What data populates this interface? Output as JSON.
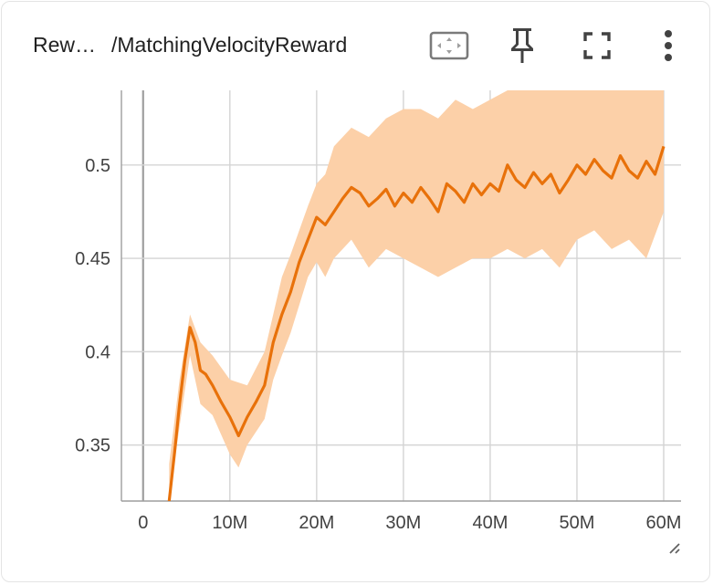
{
  "header": {
    "title_prefix": "Rew…",
    "title_main": "/MatchingVelocityReward",
    "icons": [
      "fit-domain-icon",
      "pin-icon",
      "fullscreen-icon",
      "more-vert-icon"
    ]
  },
  "colors": {
    "line": "#e8710a",
    "band": "#fcd0a8",
    "grid": "#d4d4d4",
    "axis": "#9e9e9e"
  },
  "chart_data": {
    "type": "line",
    "title": "",
    "xlabel": "",
    "ylabel": "",
    "xlim": [
      -2500000,
      62000000
    ],
    "ylim": [
      0.32,
      0.54
    ],
    "x_ticks": [
      0,
      10000000,
      20000000,
      30000000,
      40000000,
      50000000,
      60000000
    ],
    "x_tick_labels": [
      "0",
      "10M",
      "20M",
      "30M",
      "40M",
      "50M",
      "60M"
    ],
    "y_ticks": [
      0.35,
      0.4,
      0.45,
      0.5
    ],
    "y_tick_labels": [
      "0.35",
      "0.4",
      "0.45",
      "0.5"
    ],
    "grid": true,
    "series": [
      {
        "smoothed": [
          [
            3000000,
            0.32
          ],
          [
            3600000,
            0.345
          ],
          [
            4200000,
            0.372
          ],
          [
            4800000,
            0.395
          ],
          [
            5400000,
            0.413
          ],
          [
            6000000,
            0.405
          ],
          [
            6600000,
            0.39
          ],
          [
            7200000,
            0.388
          ],
          [
            8000000,
            0.382
          ],
          [
            9000000,
            0.373
          ],
          [
            10000000,
            0.365
          ],
          [
            11000000,
            0.355
          ],
          [
            12000000,
            0.365
          ],
          [
            13000000,
            0.373
          ],
          [
            14000000,
            0.382
          ],
          [
            15000000,
            0.405
          ],
          [
            16000000,
            0.42
          ],
          [
            17000000,
            0.432
          ],
          [
            18000000,
            0.448
          ],
          [
            19000000,
            0.46
          ],
          [
            20000000,
            0.472
          ],
          [
            21000000,
            0.468
          ],
          [
            22000000,
            0.475
          ],
          [
            23000000,
            0.482
          ],
          [
            24000000,
            0.488
          ],
          [
            25000000,
            0.485
          ],
          [
            26000000,
            0.478
          ],
          [
            27000000,
            0.482
          ],
          [
            28000000,
            0.487
          ],
          [
            29000000,
            0.478
          ],
          [
            30000000,
            0.485
          ],
          [
            31000000,
            0.48
          ],
          [
            32000000,
            0.488
          ],
          [
            33000000,
            0.482
          ],
          [
            34000000,
            0.475
          ],
          [
            35000000,
            0.49
          ],
          [
            36000000,
            0.486
          ],
          [
            37000000,
            0.48
          ],
          [
            38000000,
            0.49
          ],
          [
            39000000,
            0.484
          ],
          [
            40000000,
            0.49
          ],
          [
            41000000,
            0.486
          ],
          [
            42000000,
            0.5
          ],
          [
            43000000,
            0.492
          ],
          [
            44000000,
            0.488
          ],
          [
            45000000,
            0.496
          ],
          [
            46000000,
            0.49
          ],
          [
            47000000,
            0.495
          ],
          [
            48000000,
            0.485
          ],
          [
            49000000,
            0.492
          ],
          [
            50000000,
            0.5
          ],
          [
            51000000,
            0.495
          ],
          [
            52000000,
            0.503
          ],
          [
            53000000,
            0.497
          ],
          [
            54000000,
            0.493
          ],
          [
            55000000,
            0.505
          ],
          [
            56000000,
            0.497
          ],
          [
            57000000,
            0.493
          ],
          [
            58000000,
            0.502
          ],
          [
            59000000,
            0.495
          ],
          [
            60000000,
            0.51
          ]
        ],
        "band_high": [
          [
            3000000,
            0.34
          ],
          [
            4200000,
            0.385
          ],
          [
            5400000,
            0.42
          ],
          [
            6600000,
            0.405
          ],
          [
            8000000,
            0.398
          ],
          [
            10000000,
            0.385
          ],
          [
            12000000,
            0.382
          ],
          [
            14000000,
            0.4
          ],
          [
            15000000,
            0.42
          ],
          [
            16000000,
            0.44
          ],
          [
            17000000,
            0.452
          ],
          [
            18000000,
            0.465
          ],
          [
            19000000,
            0.478
          ],
          [
            20000000,
            0.49
          ],
          [
            21000000,
            0.495
          ],
          [
            22000000,
            0.51
          ],
          [
            24000000,
            0.52
          ],
          [
            26000000,
            0.515
          ],
          [
            28000000,
            0.525
          ],
          [
            30000000,
            0.53
          ],
          [
            32000000,
            0.53
          ],
          [
            34000000,
            0.525
          ],
          [
            36000000,
            0.535
          ],
          [
            38000000,
            0.53
          ],
          [
            40000000,
            0.535
          ],
          [
            42000000,
            0.54
          ],
          [
            44000000,
            0.54
          ],
          [
            46000000,
            0.54
          ],
          [
            48000000,
            0.54
          ],
          [
            50000000,
            0.54
          ],
          [
            52000000,
            0.54
          ],
          [
            54000000,
            0.54
          ],
          [
            56000000,
            0.54
          ],
          [
            58000000,
            0.54
          ],
          [
            60000000,
            0.54
          ]
        ],
        "band_low": [
          [
            3000000,
            0.32
          ],
          [
            4200000,
            0.36
          ],
          [
            5400000,
            0.398
          ],
          [
            6600000,
            0.372
          ],
          [
            8000000,
            0.366
          ],
          [
            10000000,
            0.345
          ],
          [
            11000000,
            0.338
          ],
          [
            12000000,
            0.35
          ],
          [
            14000000,
            0.364
          ],
          [
            15000000,
            0.385
          ],
          [
            16000000,
            0.398
          ],
          [
            17000000,
            0.41
          ],
          [
            18000000,
            0.425
          ],
          [
            19000000,
            0.44
          ],
          [
            20000000,
            0.448
          ],
          [
            21000000,
            0.44
          ],
          [
            22000000,
            0.45
          ],
          [
            24000000,
            0.46
          ],
          [
            26000000,
            0.445
          ],
          [
            28000000,
            0.455
          ],
          [
            30000000,
            0.45
          ],
          [
            32000000,
            0.445
          ],
          [
            34000000,
            0.44
          ],
          [
            36000000,
            0.445
          ],
          [
            38000000,
            0.45
          ],
          [
            40000000,
            0.45
          ],
          [
            42000000,
            0.455
          ],
          [
            44000000,
            0.45
          ],
          [
            46000000,
            0.455
          ],
          [
            48000000,
            0.445
          ],
          [
            50000000,
            0.46
          ],
          [
            52000000,
            0.465
          ],
          [
            54000000,
            0.455
          ],
          [
            56000000,
            0.46
          ],
          [
            58000000,
            0.45
          ],
          [
            60000000,
            0.475
          ]
        ]
      }
    ]
  }
}
